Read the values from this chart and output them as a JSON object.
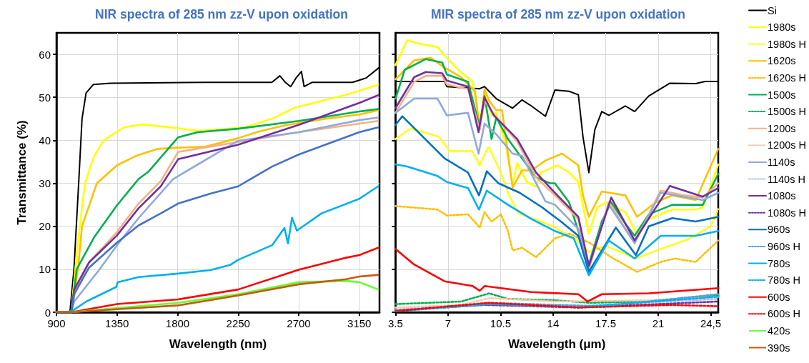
{
  "chart_data": [
    {
      "type": "line",
      "title": "NIR spectra of 285 nm zz-V upon oxidation",
      "xlabel": "Wavelength (nm)",
      "ylabel": "Transmittance (%)",
      "xlim": [
        900,
        3300
      ],
      "xticks": [
        900,
        1350,
        1800,
        2250,
        2700,
        3150
      ],
      "ylim": [
        0,
        65
      ],
      "yticks": [
        0,
        10,
        20,
        30,
        40,
        50,
        60
      ],
      "grid": true,
      "legend": false,
      "marker": "none",
      "line_style": "solid",
      "series": [
        {
          "color": "#000000",
          "x": [
            900,
            1000,
            1030,
            1065,
            1090,
            1120,
            1175,
            1300,
            2000,
            2500,
            2560,
            2600,
            2640,
            2680,
            2720,
            2740,
            2800,
            3100,
            3200,
            3300
          ],
          "values": [
            0,
            0,
            10,
            30,
            45,
            51,
            53,
            53.3,
            53.5,
            53.5,
            55,
            53.5,
            52.5,
            54.5,
            56,
            52.5,
            53.5,
            53.5,
            54.5,
            57
          ]
        },
        {
          "color": "#ffff00",
          "x": [
            900,
            1010,
            1040,
            1080,
            1112,
            1175,
            1250,
            1400,
            1540,
            1750,
            1950,
            2100,
            2300,
            2500,
            2670,
            2850,
            3040,
            3200,
            3290
          ],
          "values": [
            0,
            0,
            10,
            22,
            30,
            36,
            40,
            43,
            43.7,
            43,
            42.2,
            42.5,
            43,
            45,
            47.6,
            49,
            50.5,
            52,
            53
          ]
        },
        {
          "color": "#ffc000",
          "x": [
            900,
            1010,
            1060,
            1090,
            1200,
            1350,
            1500,
            1650,
            1800,
            2000,
            2250,
            2400,
            2600,
            2900,
            3150,
            3290
          ],
          "values": [
            0,
            0,
            10,
            20,
            30,
            34.2,
            36.5,
            38,
            38.3,
            38.5,
            40.5,
            42,
            43.5,
            45,
            46,
            47
          ]
        },
        {
          "color": "#00b050",
          "x": [
            900,
            1010,
            1050,
            1179,
            1350,
            1510,
            1583,
            1804,
            1951,
            2250,
            2700,
            3150,
            3290
          ],
          "values": [
            0,
            0,
            10,
            17.4,
            24.9,
            31,
            32.7,
            40.7,
            41.9,
            42.7,
            44.5,
            46.7,
            47.3
          ]
        },
        {
          "color": "#f4b183",
          "x": [
            900,
            1010,
            1040,
            1142,
            1350,
            1510,
            1675,
            1804,
            2250,
            2700,
            3150,
            3290
          ],
          "values": [
            0,
            0,
            5,
            11.6,
            18.7,
            25.3,
            30.5,
            37.3,
            39.6,
            41.9,
            43.9,
            44.5
          ]
        },
        {
          "color": "#8faadc",
          "x": [
            900,
            1010,
            1032,
            1216,
            1350,
            1510,
            1767,
            2250,
            2700,
            3150,
            3290
          ],
          "values": [
            0,
            0,
            2.5,
            9.8,
            15.6,
            21.9,
            31,
            39.9,
            41.9,
            44.7,
            45.3
          ]
        },
        {
          "color": "#7030a0",
          "x": [
            900,
            1010,
            1032,
            1142,
            1350,
            1510,
            1675,
            1804,
            2250,
            2700,
            3150,
            3290
          ],
          "values": [
            0,
            0,
            5.3,
            11.6,
            17.9,
            24.2,
            29.3,
            35.6,
            39,
            43.6,
            48.7,
            50.5
          ]
        },
        {
          "color": "#4472c4",
          "x": [
            900,
            1010,
            1032,
            1142,
            1350,
            1510,
            1675,
            1804,
            2043,
            2250,
            2502,
            2700,
            3150,
            3290
          ],
          "values": [
            0,
            0,
            4.2,
            10.4,
            16.2,
            20.2,
            23,
            25.3,
            27.6,
            29.3,
            33.9,
            36.7,
            41.9,
            43
          ]
        },
        {
          "color": "#00b0f0",
          "x": [
            900,
            1011,
            1121,
            1345,
            1355,
            1510,
            1804,
            2043,
            2190,
            2250,
            2502,
            2594,
            2620,
            2650,
            2686,
            2741,
            2869,
            3150,
            3290
          ],
          "values": [
            0,
            0.2,
            2.5,
            5.9,
            7,
            8.2,
            9,
            9.8,
            11,
            12.2,
            15.6,
            19.6,
            16,
            22,
            19,
            20.2,
            23,
            26.4,
            29.3
          ]
        },
        {
          "color": "#ff0000",
          "x": [
            900,
            1010,
            1350,
            1804,
            2250,
            2700,
            3053,
            3150,
            3290
          ],
          "values": [
            0,
            0,
            1.9,
            3,
            5.3,
            9.9,
            12.7,
            13.3,
            15
          ]
        },
        {
          "name": "420s",
          "color": "#66ff33",
          "x": [
            900,
            1010,
            1350,
            1804,
            2250,
            2700,
            3053,
            3150,
            3290
          ],
          "values": [
            0,
            0,
            1,
            2.2,
            4.2,
            7,
            7.3,
            7,
            5.3
          ]
        },
        {
          "name": "390s",
          "color": "#c55a11",
          "x": [
            900,
            1010,
            1350,
            1804,
            2250,
            2700,
            3053,
            3150,
            3290
          ],
          "values": [
            0,
            0,
            0.7,
            1.6,
            3.9,
            6.5,
            7.7,
            8.3,
            8.7
          ]
        }
      ]
    },
    {
      "type": "line",
      "title": "MIR spectra of 285 nm zz-V upon oxidation",
      "xlabel": "Wavelength (μm)",
      "xlim": [
        3.5,
        25
      ],
      "xticks": [
        3.5,
        7,
        10.5,
        14,
        17.5,
        21,
        {
          "value": 24.5,
          "label": "24,5"
        }
      ],
      "ylim": [
        0,
        65
      ],
      "yticks": [
        0,
        10,
        20,
        30,
        40,
        50,
        60
      ],
      "tick_labels": "x",
      "grid": true,
      "legend": "right",
      "marker": "none",
      "series": [
        {
          "name": "Si",
          "color": "#000000",
          "line_style": "solid",
          "x": [
            3.5,
            6.77,
            6.92,
            9.11,
            9.43,
            10.21,
            11.3,
            11.93,
            12.55,
            13.49,
            14.12,
            15.06,
            15.68,
            15.99,
            16.38,
            16.78,
            17.24,
            17.71,
            18.81,
            19.43,
            20.37,
            21.78,
            23.5,
            24.13,
            25
          ],
          "values": [
            53.7,
            53.7,
            52.5,
            52,
            52.5,
            49.7,
            47.5,
            49.4,
            48,
            45.6,
            51.7,
            51.4,
            50.6,
            40.8,
            32.5,
            42.5,
            46.7,
            45.8,
            48,
            46.7,
            50.3,
            53.3,
            53.2,
            53.7,
            53.7
          ]
        },
        {
          "name": "1980s",
          "color": "#ffff00",
          "line_style": "solid",
          "x": [
            3.5,
            4.27,
            5.05,
            6.3,
            6.77,
            7.86,
            8.64,
            9.11,
            9.43,
            9.9,
            10.21,
            10.83,
            11.3,
            11.61,
            12.24,
            12.86,
            13.17,
            14.27,
            15.06,
            15.68,
            16.15,
            16.38,
            16.94,
            17.56,
            18.81,
            19.59,
            20.37,
            21.94,
            23.5,
            23.97,
            25
          ],
          "values": [
            57.5,
            63.3,
            62.5,
            61.7,
            59.7,
            55.8,
            53.6,
            43.6,
            51.4,
            45.8,
            46.4,
            39.2,
            29.7,
            34.7,
            30.3,
            29.2,
            32.5,
            34.2,
            32.5,
            30.3,
            22,
            18.3,
            24.4,
            25.6,
            23.3,
            18.3,
            21.7,
            23.9,
            23.9,
            24.4,
            34.4
          ]
        },
        {
          "name": "1980s H",
          "color": "#ffff00",
          "line_style": "dotted",
          "x": [
            3.5,
            4.5,
            6.4,
            7.1,
            8.6,
            9.1,
            9.7,
            10.5,
            11.1,
            11.7,
            12.5,
            14,
            15.5,
            16.4,
            17.5,
            19.5,
            21,
            23,
            24.5,
            25
          ],
          "values": [
            40.3,
            42.8,
            40.8,
            37.5,
            37.5,
            34.2,
            38.6,
            32.5,
            27,
            23,
            22,
            20,
            17,
            14,
            15.5,
            12.5,
            14.5,
            17,
            20,
            24
          ]
        },
        {
          "name": "1620s",
          "color": "#ffc000",
          "line_style": "solid",
          "x": [
            3.5,
            4.74,
            5.83,
            6.77,
            7.86,
            8.8,
            9.11,
            9.43,
            9.74,
            10.21,
            10.6,
            11.3,
            11.93,
            12.55,
            13.49,
            14.59,
            15.68,
            15.99,
            16.38,
            17.24,
            18.81,
            19.59,
            20.84,
            21.94,
            23.5,
            25
          ],
          "values": [
            54.2,
            58.6,
            59.2,
            56.9,
            54.7,
            51.4,
            42.5,
            51.9,
            49.2,
            47,
            47,
            29,
            33,
            33,
            35.3,
            36.9,
            34.2,
            27.2,
            22.2,
            28.1,
            27.2,
            22.2,
            25.6,
            27.2,
            26.1,
            38
          ]
        },
        {
          "name": "1620s H",
          "color": "#ffc000",
          "line_style": "dotted",
          "x": [
            3.5,
            6.3,
            6.92,
            8.33,
            9.11,
            9.43,
            9.9,
            10.52,
            10.99,
            11.3,
            11.93,
            12.86,
            14.12,
            15.06,
            16.46,
            17.87,
            19.59,
            21.16,
            22.1,
            23.5,
            25
          ],
          "values": [
            24.7,
            23.9,
            22.5,
            22.8,
            19.7,
            23.3,
            21.1,
            22.8,
            18.9,
            14.4,
            15,
            12.8,
            17.2,
            18.3,
            16.1,
            12.8,
            9.4,
            11.7,
            12.5,
            11.7,
            16.7
          ]
        },
        {
          "name": "1500s",
          "color": "#00b050",
          "line_style": "solid",
          "x": [
            3.5,
            4.11,
            5.52,
            6.61,
            6.92,
            8.33,
            9.11,
            9.43,
            9.9,
            10.21,
            10.99,
            11.93,
            12.86,
            13.8,
            14.12,
            15.06,
            15.68,
            16.38,
            17.24,
            17.87,
            18.81,
            19.43,
            20.37,
            21.94,
            23.97,
            25
          ],
          "values": [
            49.7,
            56.4,
            58.9,
            58.1,
            55.3,
            53.6,
            43.1,
            50.3,
            40.3,
            45.3,
            40.3,
            35.8,
            31.4,
            30,
            30,
            25.6,
            18.9,
            11.1,
            21.1,
            25.6,
            20.6,
            17.8,
            22.8,
            25,
            25,
            32.2
          ]
        },
        {
          "name": "1500s H",
          "color": "#00b050",
          "line_style": "dotted",
          "x": [
            3.5,
            7.86,
            9.74,
            10.99,
            14.12,
            16.46,
            20.37,
            25
          ],
          "values": [
            1.9,
            2.5,
            4.4,
            3.1,
            2.8,
            2.2,
            2.5,
            3.9
          ]
        },
        {
          "name": "1200s",
          "color": "#f4b183",
          "line_style": "solid",
          "x": [
            3.5,
            4.74,
            5.52,
            6.61,
            6.92,
            8.33,
            9.11,
            9.43,
            10.21,
            11.61,
            12.86,
            14.12,
            15.68,
            16.38,
            17.71,
            19.43,
            21.16,
            22.72,
            23.97,
            25
          ],
          "values": [
            46.4,
            53.6,
            55,
            55,
            53,
            51.9,
            42.5,
            49.2,
            45.3,
            39.7,
            31.4,
            27.2,
            21.7,
            10,
            25.6,
            16.1,
            28.3,
            27.2,
            26.7,
            30
          ]
        },
        {
          "name": "1200s H",
          "color": "#f8cbad",
          "line_style": "dotted",
          "x": [
            3.5,
            7.86,
            9.74,
            14.12,
            20.37,
            25
          ],
          "values": [
            1.1,
            1.7,
            3.3,
            2.5,
            2.8,
            3.6
          ]
        },
        {
          "name": "1140s",
          "color": "#8faadc",
          "line_style": "solid",
          "x": [
            3.5,
            4.74,
            6.3,
            6.92,
            8.33,
            9.03,
            9.43,
            10.21,
            11.3,
            11.93,
            13.49,
            14.12,
            15.68,
            16.38,
            17.71,
            19.43,
            21.16,
            23.97,
            25
          ],
          "values": [
            46.4,
            49.7,
            49.7,
            45.8,
            46.4,
            36.9,
            43.9,
            41.4,
            36.9,
            36.4,
            25.8,
            25,
            19.4,
            10.6,
            25,
            16.1,
            27.8,
            26.1,
            27.8
          ]
        },
        {
          "name": "1140s H",
          "color": "#b4c7e7",
          "line_style": "dotted",
          "x": [
            3.5,
            9.43,
            15.68,
            25
          ],
          "values": [
            0.6,
            1.9,
            1.4,
            3.1
          ]
        },
        {
          "name": "1080s",
          "color": "#7030a0",
          "line_style": "solid",
          "x": [
            3.5,
            4.74,
            5.52,
            6.61,
            6.92,
            8.33,
            9.03,
            9.43,
            10.05,
            11.61,
            12.86,
            14.12,
            15.68,
            16.38,
            17.87,
            19.43,
            21.78,
            23.97,
            25
          ],
          "values": [
            47.5,
            54.7,
            55.9,
            55.6,
            53.9,
            52.5,
            41.9,
            50,
            45.8,
            40.3,
            32.5,
            27.8,
            22.2,
            10.8,
            26.7,
            16.7,
            29.4,
            26.9,
            28.9
          ]
        },
        {
          "name": "1080s H",
          "color": "#7030a0",
          "line_style": "dotted",
          "x": [
            3.5,
            9.43,
            15.68,
            25
          ],
          "values": [
            0.4,
            1.7,
            1.1,
            2.5
          ]
        },
        {
          "name": "960s",
          "color": "#0070c0",
          "line_style": "solid",
          "x": [
            3.5,
            3.95,
            6.77,
            8.33,
            9.06,
            9.58,
            10.36,
            11.77,
            13.27,
            14.52,
            15.68,
            16.38,
            18.18,
            19.51,
            20.37,
            21.94,
            23.5,
            25
          ],
          "values": [
            43.6,
            45.6,
            35.8,
            32.5,
            27.2,
            32.8,
            30,
            27.8,
            24.4,
            21.1,
            17.8,
            9.4,
            19.7,
            13.3,
            20,
            21.9,
            21.1,
            22.2
          ]
        },
        {
          "name": "960s H",
          "color": "#5b9bd5",
          "line_style": "dotted",
          "x": [
            3.5,
            9.74,
            17.24,
            25
          ],
          "values": [
            0.3,
            2.2,
            1.4,
            4.2
          ]
        },
        {
          "name": "780s",
          "color": "#00b0f0",
          "line_style": "solid",
          "x": [
            3.5,
            4.27,
            6.3,
            6.92,
            8.33,
            9.06,
            9.58,
            10.99,
            12.55,
            14.12,
            15.37,
            16.38,
            17.71,
            19.43,
            21.16,
            23.5,
            25
          ],
          "values": [
            34.4,
            33.9,
            31.7,
            30.3,
            28.9,
            23.9,
            28.3,
            25,
            21.7,
            18.9,
            17.2,
            8.6,
            16.7,
            12.5,
            17.8,
            17.8,
            18.9
          ]
        },
        {
          "name": "780s H",
          "color": "#00b0f0",
          "line_style": "dotted",
          "x": [
            3.5,
            9.74,
            15.68,
            25
          ],
          "values": [
            0.2,
            1.9,
            1.2,
            3.6
          ]
        },
        {
          "name": "600s",
          "color": "#ff0000",
          "line_style": "solid",
          "x": [
            3.5,
            4.74,
            6.77,
            8.64,
            9.11,
            9.43,
            12.55,
            15.68,
            16.3,
            17.24,
            20.37,
            25
          ],
          "values": [
            14.7,
            11.1,
            7.2,
            6.1,
            5,
            6.1,
            4.7,
            4.2,
            2.5,
            4.2,
            4.4,
            5.6
          ]
        },
        {
          "name": "600s H",
          "color": "#ff0000",
          "line_style": "dotted",
          "x": [
            3.5,
            9.74,
            15.68,
            21.94,
            25
          ],
          "values": [
            0.3,
            2.2,
            1.1,
            1.7,
            1.4
          ]
        }
      ]
    }
  ]
}
